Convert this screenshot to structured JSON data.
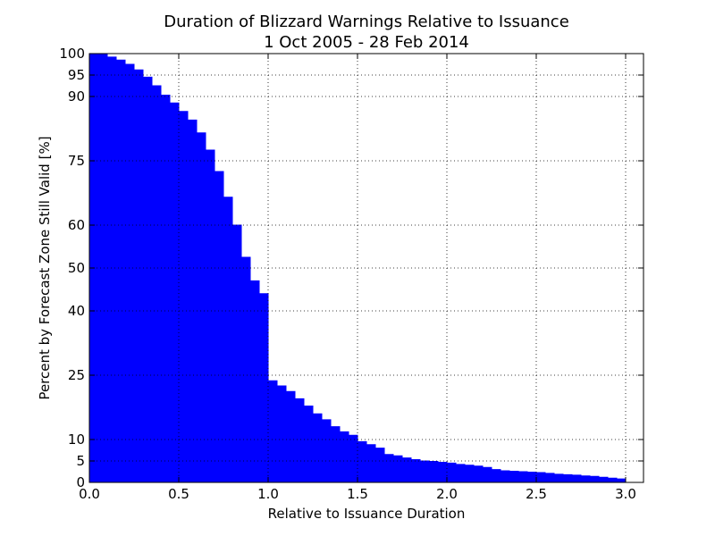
{
  "chart_data": {
    "type": "bar",
    "title": "Duration of Blizzard Warnings Relative to Issuance",
    "subtitle": "1 Oct 2005 - 28 Feb 2014",
    "xlabel": "Relative to Issuance Duration",
    "ylabel": "Percent by Forecast Zone Still Valid [%]",
    "xlim": [
      0.0,
      3.1
    ],
    "ylim": [
      0,
      100
    ],
    "xticks": [
      0.0,
      0.5,
      1.0,
      1.5,
      2.0,
      2.5,
      3.0
    ],
    "xtick_labels": [
      "0.0",
      "0.5",
      "1.0",
      "1.5",
      "2.0",
      "2.5",
      "3.0"
    ],
    "yticks": [
      0,
      5,
      10,
      25,
      40,
      50,
      60,
      75,
      90,
      95,
      100
    ],
    "ytick_labels": [
      "0",
      "5",
      "10",
      "25",
      "40",
      "50",
      "60",
      "75",
      "90",
      "95",
      "100"
    ],
    "grid": true,
    "legend": "none",
    "fill_color": "#0000ff",
    "x": [
      0.0,
      0.05,
      0.1,
      0.15,
      0.2,
      0.25,
      0.3,
      0.35,
      0.4,
      0.45,
      0.5,
      0.55,
      0.6,
      0.65,
      0.7,
      0.75,
      0.8,
      0.85,
      0.9,
      0.95,
      1.0,
      1.0001,
      1.05,
      1.1,
      1.15,
      1.2,
      1.25,
      1.3,
      1.35,
      1.4,
      1.45,
      1.5,
      1.55,
      1.6,
      1.65,
      1.7,
      1.75,
      1.8,
      1.85,
      1.9,
      1.95,
      2.0,
      2.05,
      2.1,
      2.15,
      2.2,
      2.25,
      2.3,
      2.35,
      2.4,
      2.45,
      2.5,
      2.55,
      2.6,
      2.65,
      2.7,
      2.75,
      2.8,
      2.85,
      2.9,
      2.95,
      3.0
    ],
    "values": [
      100,
      99.8,
      99.2,
      98.5,
      97.5,
      96.2,
      94.5,
      92.5,
      90.3,
      88.5,
      86.5,
      84.5,
      81.5,
      77.5,
      72.5,
      66.5,
      60.0,
      52.5,
      47.0,
      44.0,
      42.0,
      23.7,
      22.5,
      21.2,
      19.5,
      17.8,
      16.0,
      14.6,
      13.0,
      11.8,
      11.0,
      9.5,
      8.8,
      8.0,
      6.5,
      6.2,
      5.7,
      5.3,
      5.0,
      4.9,
      4.7,
      4.5,
      4.2,
      4.0,
      3.8,
      3.5,
      3.0,
      2.7,
      2.6,
      2.5,
      2.4,
      2.3,
      2.1,
      1.9,
      1.8,
      1.7,
      1.5,
      1.4,
      1.2,
      1.0,
      0.8,
      0.6
    ]
  }
}
